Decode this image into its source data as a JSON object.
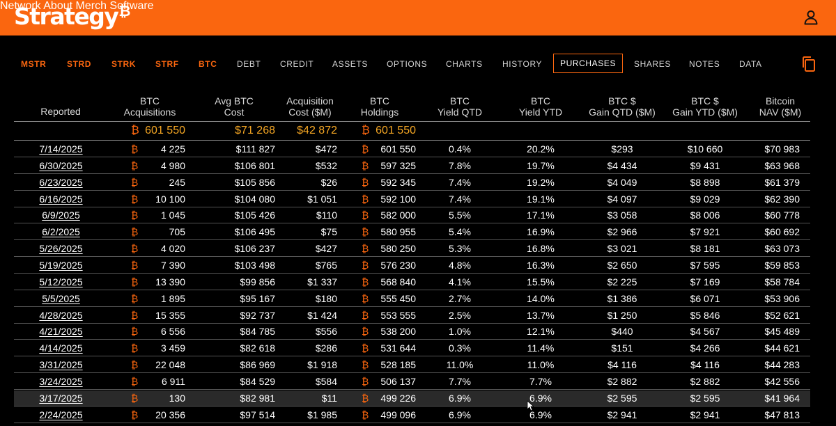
{
  "brand": {
    "name": "Strategy",
    "symbol": "₿"
  },
  "topnav": [
    "Network",
    "About",
    "Merch",
    "Software"
  ],
  "subnav": {
    "tickers": [
      "MSTR",
      "STRD",
      "STRK",
      "STRF",
      "BTC"
    ],
    "items": [
      "DEBT",
      "CREDIT",
      "ASSETS",
      "OPTIONS",
      "CHARTS",
      "HISTORY",
      "PURCHASES",
      "SHARES",
      "NOTES",
      "DATA"
    ],
    "active": "PURCHASES"
  },
  "table": {
    "headers": [
      [
        "Reported"
      ],
      [
        "BTC",
        "Acquisitions"
      ],
      [
        "Avg BTC",
        "Cost"
      ],
      [
        "Acquisition",
        "Cost ($M)"
      ],
      [
        "BTC",
        "Holdings"
      ],
      [
        "BTC",
        "Yield QTD"
      ],
      [
        "BTC",
        "Yield YTD"
      ],
      [
        "BTC $",
        "Gain QTD ($M)"
      ],
      [
        "BTC $",
        "Gain YTD ($M)"
      ],
      [
        "Bitcoin",
        "NAV ($M)"
      ]
    ],
    "totals": {
      "acquisitions": "601 550",
      "avg_cost": "$71 268",
      "acq_cost": "$42 872",
      "holdings": "601 550"
    },
    "rows": [
      [
        "7/14/2025",
        "4 225",
        "$111 827",
        "$472",
        "601 550",
        "0.4%",
        "20.2%",
        "$293",
        "$10 660",
        "$70 983"
      ],
      [
        "6/30/2025",
        "4 980",
        "$106 801",
        "$532",
        "597 325",
        "7.8%",
        "19.7%",
        "$4 434",
        "$9 431",
        "$63 968"
      ],
      [
        "6/23/2025",
        "245",
        "$105 856",
        "$26",
        "592 345",
        "7.4%",
        "19.2%",
        "$4 049",
        "$8 898",
        "$61 379"
      ],
      [
        "6/16/2025",
        "10 100",
        "$104 080",
        "$1 051",
        "592 100",
        "7.4%",
        "19.1%",
        "$4 097",
        "$9 029",
        "$62 390"
      ],
      [
        "6/9/2025",
        "1 045",
        "$105 426",
        "$110",
        "582 000",
        "5.5%",
        "17.1%",
        "$3 058",
        "$8 006",
        "$60 778"
      ],
      [
        "6/2/2025",
        "705",
        "$106 495",
        "$75",
        "580 955",
        "5.4%",
        "16.9%",
        "$2 966",
        "$7 921",
        "$60 692"
      ],
      [
        "5/26/2025",
        "4 020",
        "$106 237",
        "$427",
        "580 250",
        "5.3%",
        "16.8%",
        "$3 021",
        "$8 181",
        "$63 073"
      ],
      [
        "5/19/2025",
        "7 390",
        "$103 498",
        "$765",
        "576 230",
        "4.8%",
        "16.3%",
        "$2 650",
        "$7 595",
        "$59 853"
      ],
      [
        "5/12/2025",
        "13 390",
        "$99 856",
        "$1 337",
        "568 840",
        "4.1%",
        "15.5%",
        "$2 225",
        "$7 169",
        "$58 784"
      ],
      [
        "5/5/2025",
        "1 895",
        "$95 167",
        "$180",
        "555 450",
        "2.7%",
        "14.0%",
        "$1 386",
        "$6 071",
        "$53 906"
      ],
      [
        "4/28/2025",
        "15 355",
        "$92 737",
        "$1 424",
        "553 555",
        "2.5%",
        "13.7%",
        "$1 250",
        "$5 846",
        "$52 621"
      ],
      [
        "4/21/2025",
        "6 556",
        "$84 785",
        "$556",
        "538 200",
        "1.0%",
        "12.1%",
        "$440",
        "$4 567",
        "$45 489"
      ],
      [
        "4/14/2025",
        "3 459",
        "$82 618",
        "$286",
        "531 644",
        "0.3%",
        "11.4%",
        "$151",
        "$4 266",
        "$44 621"
      ],
      [
        "3/31/2025",
        "22 048",
        "$86 969",
        "$1 918",
        "528 185",
        "11.0%",
        "11.0%",
        "$4 116",
        "$4 116",
        "$44 283"
      ],
      [
        "3/24/2025",
        "6 911",
        "$84 529",
        "$584",
        "506 137",
        "7.7%",
        "7.7%",
        "$2 882",
        "$2 882",
        "$42 556"
      ],
      [
        "3/17/2025",
        "130",
        "$82 981",
        "$11",
        "499 226",
        "6.9%",
        "6.9%",
        "$2 595",
        "$2 595",
        "$41 964"
      ],
      [
        "2/24/2025",
        "20 356",
        "$97 514",
        "$1 985",
        "499 096",
        "6.9%",
        "6.9%",
        "$2 941",
        "$2 941",
        "$47 813"
      ]
    ]
  },
  "colors": {
    "brand": "#fa660f",
    "totals": "#f5a623",
    "background": "#000000"
  },
  "icons": {
    "user": "user-icon",
    "copy": "copy-icon"
  }
}
